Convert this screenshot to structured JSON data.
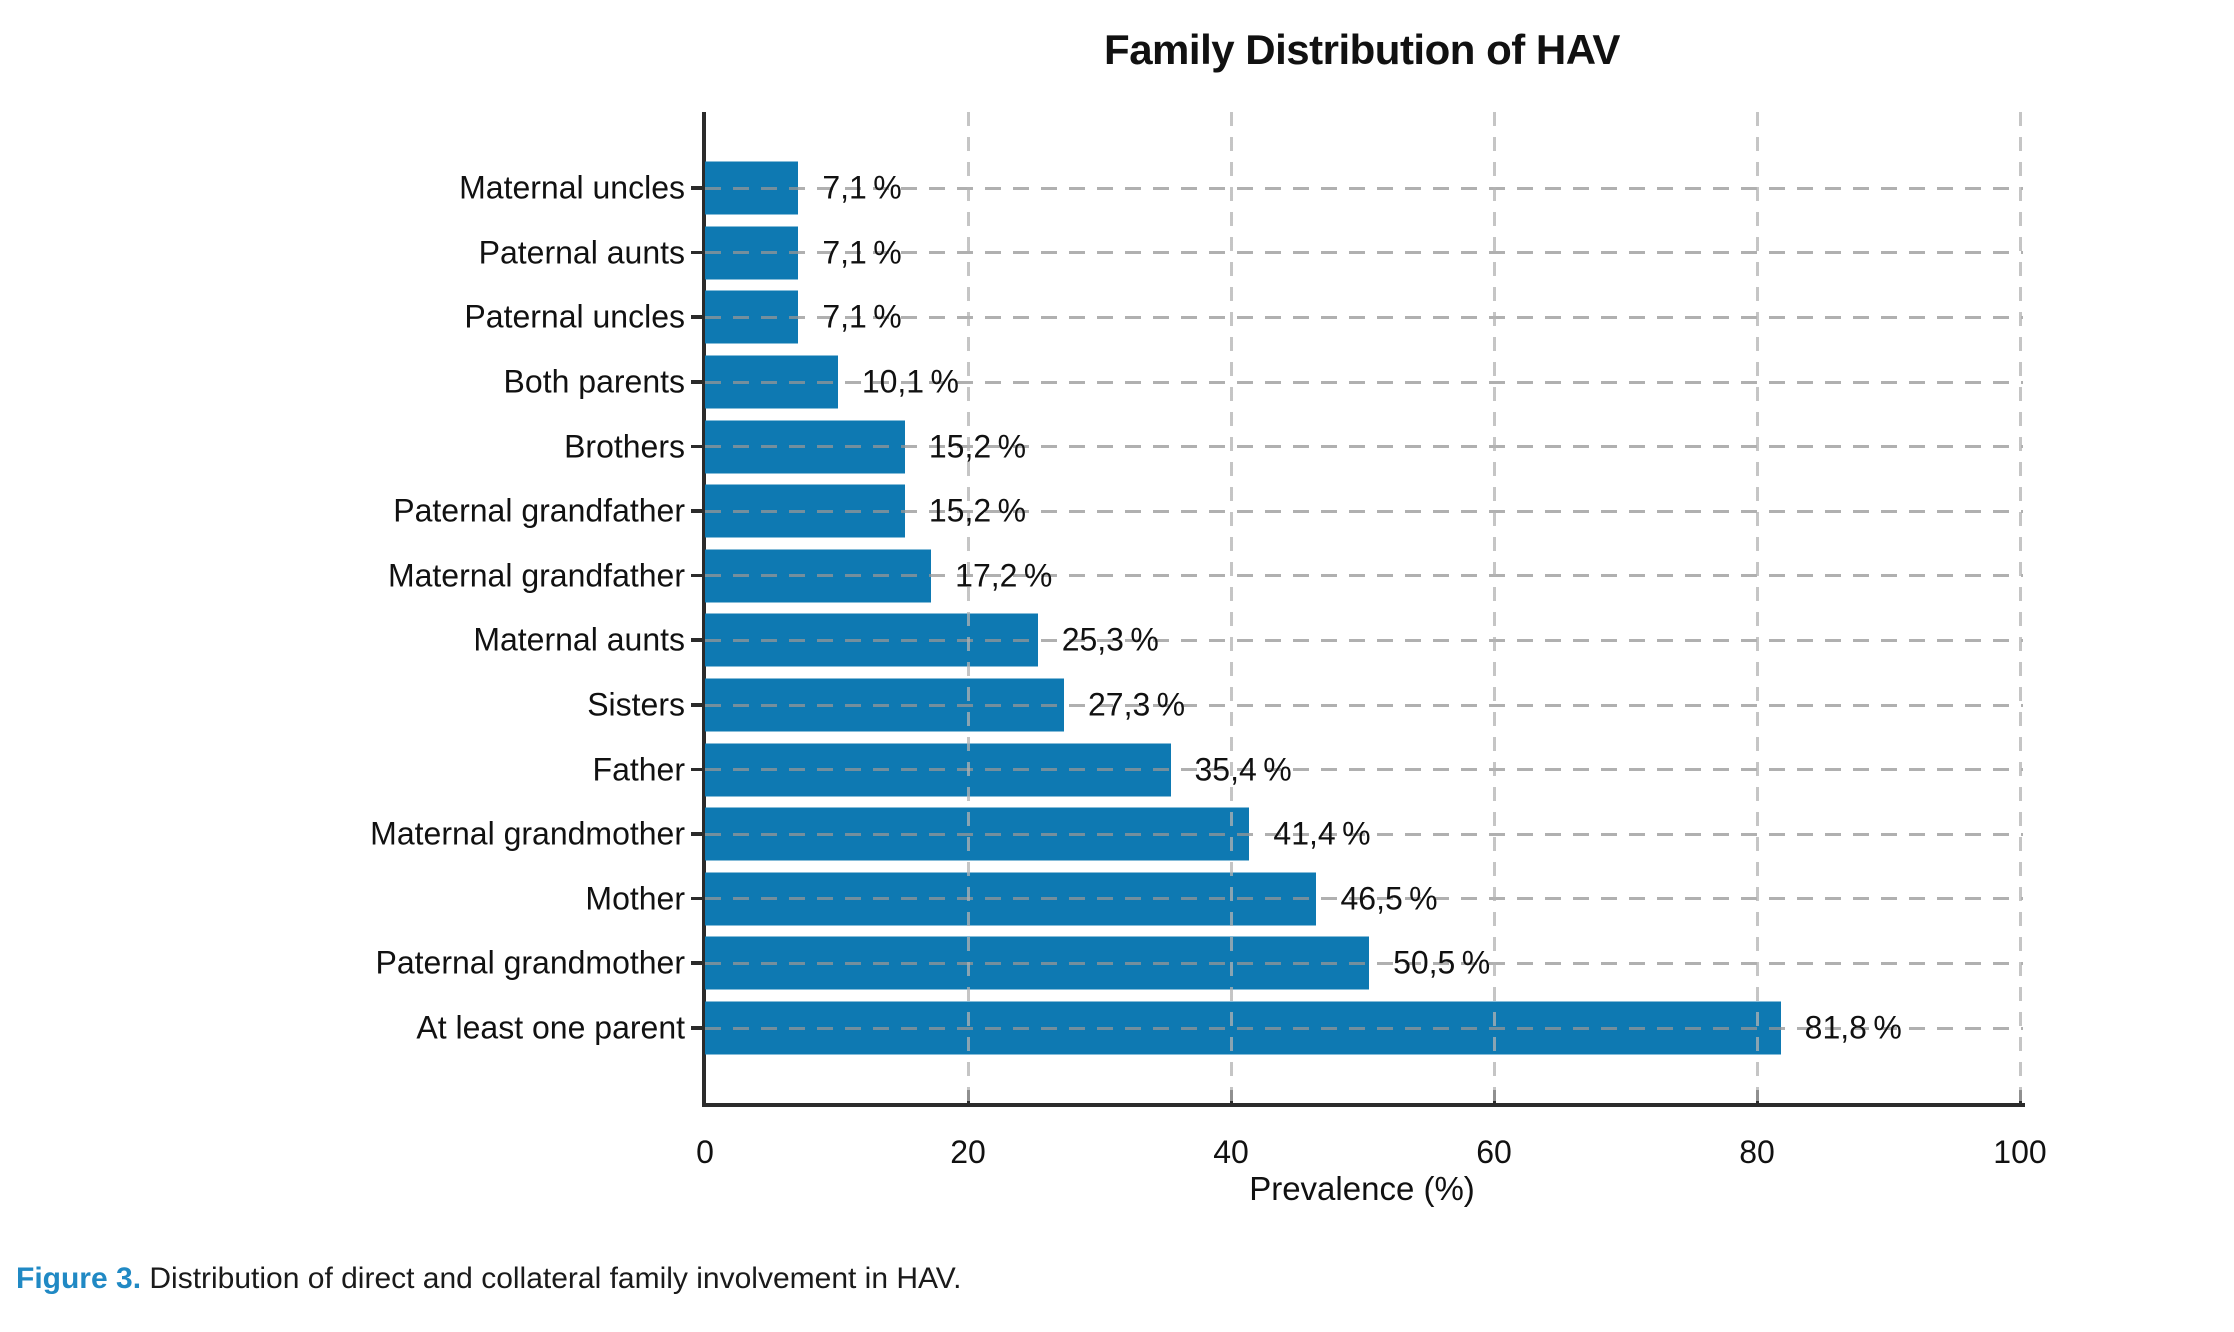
{
  "chart_data": {
    "type": "bar",
    "orientation": "horizontal",
    "title": "Family Distribution of HAV",
    "xlabel": "Prevalence (%)",
    "xlim": [
      0,
      100
    ],
    "x_ticks": [
      0,
      20,
      40,
      60,
      80,
      100
    ],
    "grid": "dashed gridlines on both axes, drawn over bars",
    "legend": "none",
    "bar_color": "#0e79b2",
    "categories": [
      "Maternal uncles",
      "Paternal aunts",
      "Paternal uncles",
      "Both parents",
      "Brothers",
      "Paternal grandfather",
      "Maternal grandfather",
      "Maternal aunts",
      "Sisters",
      "Father",
      "Maternal grandmother",
      "Mother",
      "Paternal grandmother",
      "At least one parent"
    ],
    "values": [
      7.1,
      7.1,
      7.1,
      10.1,
      15.2,
      15.2,
      17.2,
      25.3,
      27.3,
      35.4,
      41.4,
      46.5,
      50.5,
      81.8
    ],
    "value_labels": [
      "7,1 %",
      "7,1 %",
      "7,1 %",
      "10,1 %",
      "15,2 %",
      "15,2 %",
      "17,2 %",
      "25,3 %",
      "27,3 %",
      "35,4 %",
      "41,4 %",
      "46,5 %",
      "50,5 %",
      "81,8 %"
    ]
  },
  "caption": {
    "prefix": "Figure 3.",
    "text": " Distribution of direct and collateral family involvement in HAV.",
    "prefix_color": "#2089c4"
  }
}
